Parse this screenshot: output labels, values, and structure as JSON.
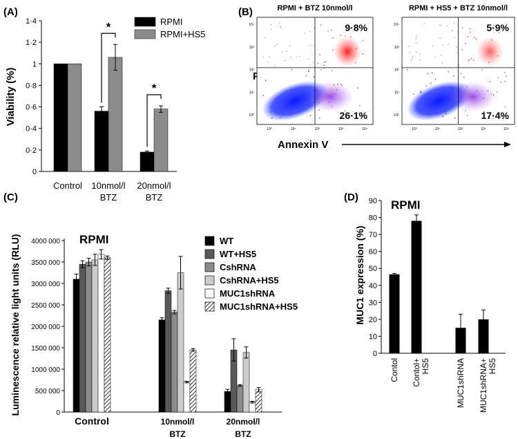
{
  "chart_data": [
    {
      "panel": "(A)",
      "type": "bar",
      "ylabel": "Viability (%)",
      "ylim": [
        0,
        1.4
      ],
      "yticks": [
        "0",
        "0·2",
        "0·4",
        "0·6",
        "0·8",
        "1",
        "1·2",
        "1·4"
      ],
      "categories": [
        "Control",
        "10nmol/l\nBTZ",
        "20nmol/l\nBTZ"
      ],
      "series": [
        {
          "name": "RPMI",
          "color": "#000000",
          "values": [
            1.0,
            0.56,
            0.18
          ],
          "errors": [
            0,
            0.04,
            0.01
          ]
        },
        {
          "name": "RPMI+HS5",
          "color": "#8c8c8c",
          "values": [
            1.0,
            1.06,
            0.58
          ],
          "errors": [
            0,
            0.12,
            0.03
          ]
        }
      ],
      "significance": [
        {
          "category": 1,
          "label": "*"
        },
        {
          "category": 2,
          "label": "*"
        }
      ]
    },
    {
      "panel": "(B)",
      "type": "scatter",
      "xlabel": "Annexin V",
      "ylabel": "PI",
      "plots": [
        {
          "title": "RPMI + BTZ 10nmol/l",
          "upper_right": "9·8%",
          "lower_right": "26·1%"
        },
        {
          "title": "RPMI + HS5 + BTZ 10nmol/l",
          "upper_right": "5·9%",
          "lower_right": "17·4%"
        }
      ],
      "tick_labels": [
        "10⁰",
        "10¹",
        "10²",
        "10³",
        "10⁴"
      ]
    },
    {
      "panel": "(C)",
      "type": "bar",
      "title": "RPMI",
      "ylabel": "Luminescence relative light units (RLU)",
      "ylim": [
        0,
        4000000
      ],
      "yticks": [
        "0",
        "500 000",
        "1000 000",
        "1500 000",
        "2000 000",
        "2500 000",
        "3000 000",
        "3500 000",
        "4000 000"
      ],
      "categories": [
        "Control",
        "10nmol/l\nBTZ",
        "20nmol/l\nBTZ"
      ],
      "series": [
        {
          "name": "WT",
          "color": "#000000",
          "values": [
            3100000,
            2150000,
            480000
          ],
          "errors": [
            120000,
            50000,
            50000
          ]
        },
        {
          "name": "WT+HS5",
          "color": "#595959",
          "values": [
            3450000,
            2830000,
            1450000
          ],
          "errors": [
            80000,
            60000,
            260000
          ]
        },
        {
          "name": "CshRNA",
          "color": "#8c8c8c",
          "values": [
            3500000,
            2330000,
            620000
          ],
          "errors": [
            90000,
            40000,
            20000
          ]
        },
        {
          "name": "CshRNA+HS5",
          "color": "#cccccc",
          "values": [
            3550000,
            3250000,
            1390000
          ],
          "errors": [
            130000,
            380000,
            130000
          ]
        },
        {
          "name": "MUC1shRNA",
          "color": "#ffffff",
          "values": [
            3680000,
            700000,
            230000
          ],
          "errors": [
            110000,
            20000,
            20000
          ]
        },
        {
          "name": "MUC1shRNA+HS5",
          "color": "hatch",
          "values": [
            3600000,
            1450000,
            520000
          ],
          "errors": [
            40000,
            30000,
            50000
          ]
        }
      ]
    },
    {
      "panel": "(D)",
      "type": "bar",
      "title": "RPMI",
      "ylabel": "MUC1 expression (%)",
      "ylim": [
        0,
        90
      ],
      "yticks": [
        "0",
        "10",
        "20",
        "30",
        "40",
        "50",
        "60",
        "70",
        "80",
        "90"
      ],
      "categories": [
        "Contol",
        "Contol+\nHS5",
        "",
        "MUC1shRNA",
        "MUC1shRNA+\nHS5"
      ],
      "values": [
        46.5,
        78,
        null,
        15,
        20
      ],
      "errors": [
        0.5,
        3.5,
        null,
        8,
        5.5
      ]
    }
  ]
}
